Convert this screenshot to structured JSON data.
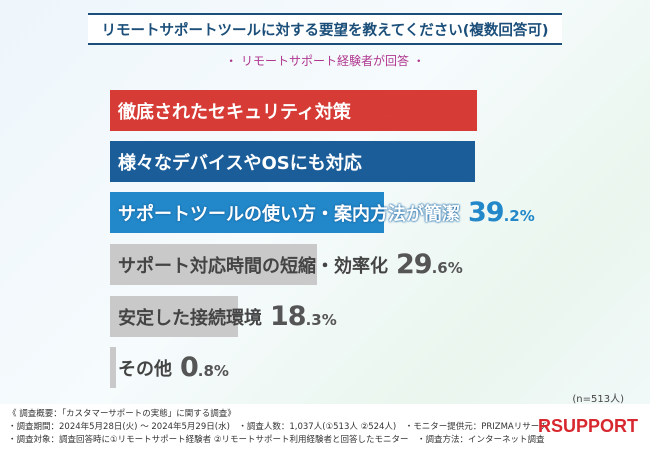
{
  "chart_data": {
    "type": "bar",
    "orientation": "horizontal",
    "title": "リモートサポートツールに対する要望を教えてください(複数回答可)",
    "subtitle": "・ リモートサポート経験者が回答 ・",
    "categories": [
      "徹底されたセキュリティ対策",
      "様々なデバイスやOSにも対応",
      "サポートツールの使い方・案内方法が簡潔",
      "サポート対応時間の短縮・効率化",
      "安定した接続環境",
      "その他"
    ],
    "values": [
      52.4,
      52.2,
      39.2,
      29.6,
      18.3,
      0.8
    ],
    "unit": "%",
    "colors": [
      "#d63b36",
      "#1b5d98",
      "#2288c9",
      "#c9c9c9",
      "#c9c9c9",
      "#c9c9c9"
    ],
    "label_colors": [
      "#ffffff",
      "#ffffff",
      "#ffffff",
      "#444444",
      "#444444",
      "#444444"
    ],
    "pct_colors": [
      "#d63b36",
      "#1b5d98",
      "#2288c9",
      "#555555",
      "#555555",
      "#555555"
    ],
    "xlim": [
      0,
      55
    ],
    "sample": "(n=513人)"
  },
  "footer": {
    "line1": "《 調査概要：「カスタマーサポートの実態」に関する調査》",
    "line2": "・調査期間：2024年5月28日(火) ～ 2024年5月29日(水)　・調査人数：1,037人(①513人 ②524人)　・モニター提供元：PRIZMAリサーチ",
    "line3": "・調査対象：調査回答時に①リモートサポート経験者 ②リモートサポート利用経験者と回答したモニター　・調査方法：インターネット調査",
    "logo": "RSUPPORT"
  }
}
